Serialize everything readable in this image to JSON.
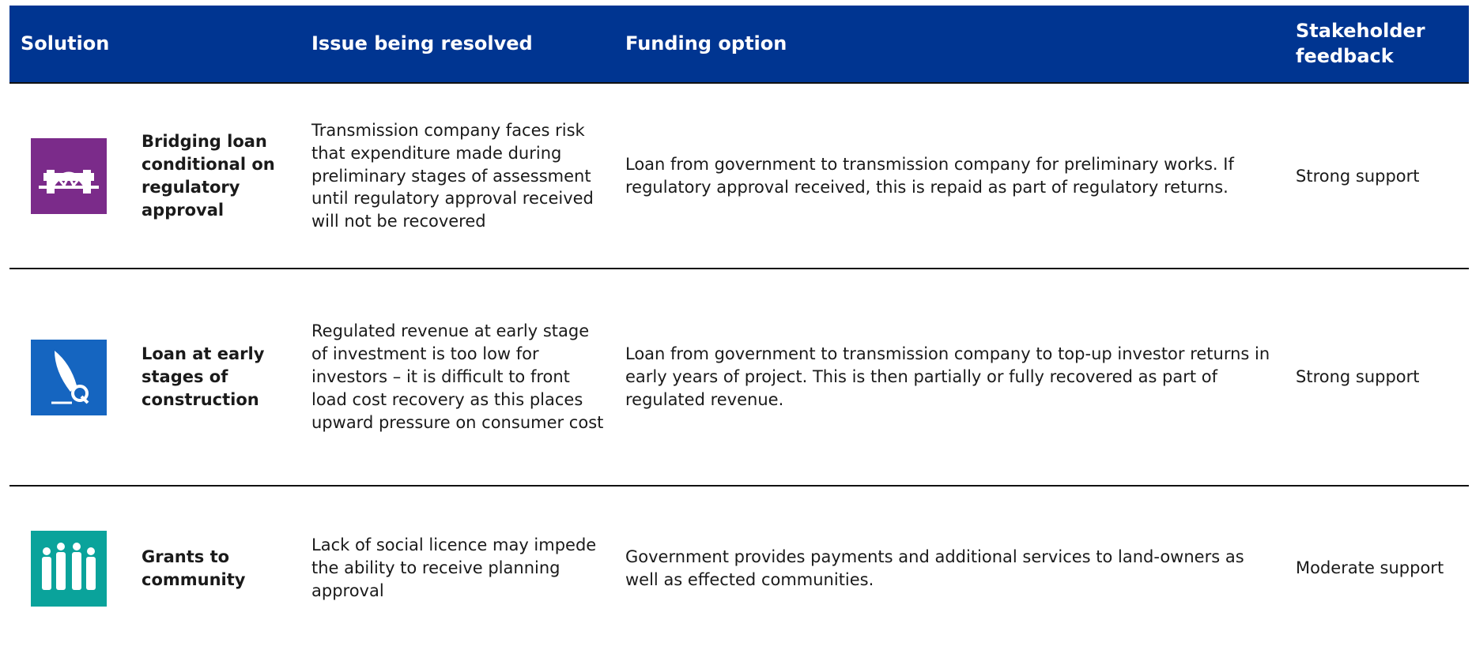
{
  "header": {
    "columns": [
      "Solution",
      "Issue being resolved",
      "Funding option",
      "Stakeholder feedback"
    ]
  },
  "rows": [
    {
      "solution": "Bridging loan conditional on regulatory approval",
      "issue": "Transmission company faces risk that expenditure made during preliminary stages of assessment until regulatory approval received will not be recovered",
      "funding": "Loan from government to transmission company for preliminary works. If regulatory approval received, this is repaid as part of regulatory returns.",
      "feedback": "Strong support"
    },
    {
      "solution": "Loan at early stages of construction",
      "issue": "Regulated revenue at early stage of investment is too low for investors – it is difficult to front load cost recovery as this places upward pressure on consumer cost",
      "funding": "Loan from government to transmission company to top-up investor returns in early years of project. This is then partially or fully recovered as part of regulated revenue.",
      "feedback": "Strong support"
    },
    {
      "solution": "Grants to community",
      "issue": "Lack of social licence may impede the ability to receive planning approval",
      "funding": "Government provides payments and additional services to land-owners as well as effected communities.",
      "feedback": "Moderate support"
    }
  ]
}
